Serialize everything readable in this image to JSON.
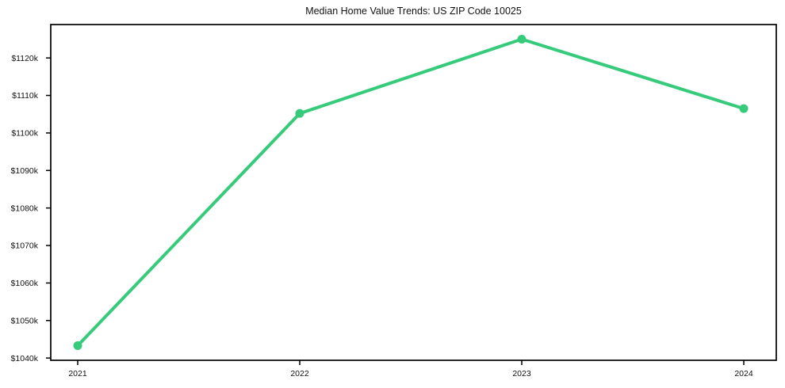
{
  "page": {
    "background": "#ffffff"
  },
  "chart_data": {
    "type": "line",
    "title": "Median Home Value Trends: US ZIP Code 10025",
    "categories": [
      "2021",
      "2022",
      "2023",
      "2024"
    ],
    "series": [
      {
        "values": [
          1043.3,
          1105.2,
          1125.0,
          1106.5
        ],
        "color": "#35cb7a",
        "marker": "circle"
      }
    ],
    "value_unit": "$k",
    "xlabel": "",
    "ylabel": "",
    "ylim": [
      1039.4,
      1128.9
    ],
    "yticks": [
      1040,
      1050,
      1060,
      1070,
      1080,
      1090,
      1100,
      1110,
      1120
    ],
    "ytick_labels": [
      "$1040k",
      "$1050k",
      "$1060k",
      "$1070k",
      "$1080k",
      "$1090k",
      "$1100k",
      "$1110k",
      "$1120k"
    ],
    "grid": false,
    "legend": "none",
    "axis_color": "#000000",
    "text_color": "#111111"
  }
}
